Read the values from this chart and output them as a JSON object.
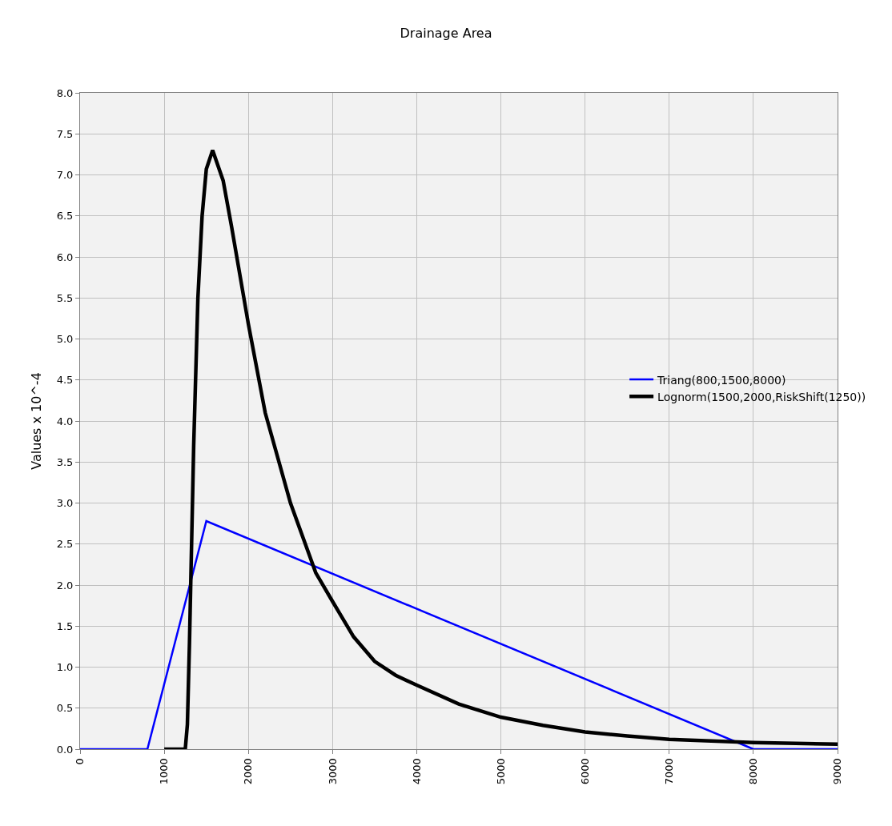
{
  "chart_data": {
    "type": "line",
    "title": "Drainage Area",
    "ylabel": "Values x 10^-4",
    "series": [
      {
        "name": "Triang(800,1500,8000)",
        "color": "#0000ff",
        "x": [
          0,
          800,
          1500,
          8000,
          9000
        ],
        "values": [
          0,
          0,
          2.78,
          0,
          0
        ]
      },
      {
        "name": "Lognorm(1500,2000,RiskShift(1250))",
        "color": "#000000",
        "x": [
          1000,
          1250,
          1275,
          1300,
          1350,
          1400,
          1450,
          1500,
          1575,
          1700,
          1800,
          2000,
          2200,
          2500,
          2800,
          3000,
          3250,
          3500,
          3750,
          4000,
          4500,
          5000,
          5500,
          6000,
          6500,
          7000,
          7500,
          8000,
          8500,
          9000
        ],
        "values": [
          0,
          0,
          0.3,
          1.3,
          3.7,
          5.5,
          6.5,
          7.07,
          7.3,
          6.93,
          6.37,
          5.18,
          4.1,
          3.0,
          2.15,
          1.8,
          1.37,
          1.07,
          0.9,
          0.78,
          0.55,
          0.39,
          0.29,
          0.21,
          0.16,
          0.12,
          0.1,
          0.08,
          0.07,
          0.06
        ]
      }
    ],
    "xlim": [
      0,
      9000
    ],
    "xticks": [
      0,
      1000,
      2000,
      3000,
      4000,
      5000,
      6000,
      7000,
      8000,
      9000
    ],
    "ylim": [
      0,
      8
    ],
    "yticks": [
      {
        "value": 0,
        "label": "0.0"
      },
      {
        "value": 0.5,
        "label": "0.5"
      },
      {
        "value": 1,
        "label": "1.0"
      },
      {
        "value": 1.5,
        "label": "1.5"
      },
      {
        "value": 2,
        "label": "2.0"
      },
      {
        "value": 2.5,
        "label": "2.5"
      },
      {
        "value": 3,
        "label": "3.0"
      },
      {
        "value": 3.5,
        "label": "3.5"
      },
      {
        "value": 4,
        "label": "4.0"
      },
      {
        "value": 4.5,
        "label": "4.5"
      },
      {
        "value": 5,
        "label": "5.0"
      },
      {
        "value": 5.5,
        "label": "5.5"
      },
      {
        "value": 6,
        "label": "6.0"
      },
      {
        "value": 6.5,
        "label": "6.5"
      },
      {
        "value": 7,
        "label": "7.0"
      },
      {
        "value": 7.5,
        "label": "7.5"
      },
      {
        "value": 8,
        "label": "8.0"
      }
    ],
    "grid": true,
    "legend": "right",
    "marker": "none",
    "line_style": "solid"
  }
}
